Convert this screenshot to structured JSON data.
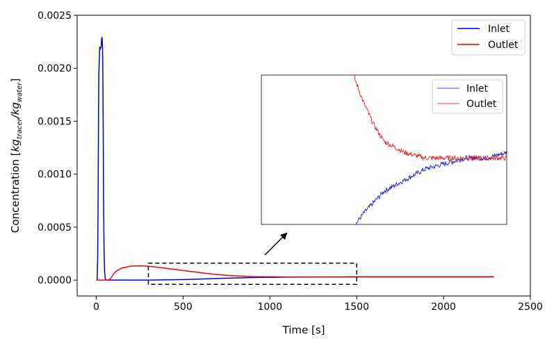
{
  "chart_data": {
    "type": "line",
    "xlabel": "Time [s]",
    "ylabel": {
      "text": "Concentration [",
      "num": "kg",
      "num_sub": "tracer",
      "sep": "/",
      "den": "kg",
      "den_sub": "water",
      "close": "]"
    },
    "xlim": [
      -110,
      2500
    ],
    "ylim": [
      -0.00015,
      0.0025
    ],
    "xticks": [
      "0",
      "500",
      "1000",
      "1500",
      "2000",
      "2500"
    ],
    "xtick_values": [
      0,
      500,
      1000,
      1500,
      2000,
      2500
    ],
    "yticks": [
      "0.0000",
      "0.0005",
      "0.0010",
      "0.0015",
      "0.0020",
      "0.0025"
    ],
    "ytick_values": [
      0,
      0.0005,
      0.001,
      0.0015,
      0.002,
      0.0025
    ],
    "grid": false,
    "legend_position": "upper right",
    "series": [
      {
        "name": "Inlet",
        "color": "#0000cc",
        "x": [
          0,
          5,
          8,
          10,
          13,
          15,
          18,
          20,
          22,
          25,
          28,
          30,
          32,
          34,
          36,
          38,
          40,
          42,
          45,
          48,
          52,
          60,
          80,
          150,
          300,
          400,
          500,
          600,
          700,
          800,
          900,
          1000,
          1100,
          1200,
          1300,
          1400,
          1500,
          1600,
          1700,
          1800,
          1900,
          2000,
          2100,
          2200,
          2290
        ],
        "y": [
          0,
          0,
          0.0002,
          0.0006,
          0.0015,
          0.00195,
          0.0021,
          0.0022,
          0.00218,
          0.00219,
          0.0022,
          0.00226,
          0.00229,
          0.00228,
          0.0022,
          0.0019,
          0.0014,
          0.0008,
          0.0003,
          8e-05,
          1e-05,
          0,
          0,
          0,
          0,
          2e-06,
          5e-06,
          1e-05,
          1.5e-05,
          2e-05,
          2.4e-05,
          2.6e-05,
          2.8e-05,
          2.9e-05,
          3e-05,
          3e-05,
          3.1e-05,
          3.1e-05,
          3.1e-05,
          3.1e-05,
          3.1e-05,
          3.1e-05,
          3.1e-05,
          3.1e-05,
          3.1e-05
        ]
      },
      {
        "name": "Outlet",
        "color": "#ee0000",
        "x": [
          0,
          60,
          75,
          85,
          100,
          120,
          150,
          200,
          250,
          300,
          350,
          400,
          450,
          500,
          550,
          600,
          650,
          700,
          750,
          800,
          850,
          900,
          950,
          1000,
          1100,
          1200,
          1300,
          1400,
          1500,
          1700,
          1900,
          2100,
          2290
        ],
        "y": [
          0,
          0,
          3e-06,
          2e-05,
          6e-05,
          9e-05,
          0.000115,
          0.000132,
          0.000135,
          0.00013,
          0.000122,
          0.000112,
          0.000102,
          9e-05,
          8e-05,
          7e-05,
          6e-05,
          5.2e-05,
          4.5e-05,
          4e-05,
          3.6e-05,
          3.3e-05,
          3.2e-05,
          3.1e-05,
          3e-05,
          3e-05,
          3e-05,
          3e-05,
          3e-05,
          3e-05,
          3e-05,
          3e-05,
          3e-05
        ]
      }
    ],
    "zoom_region": {
      "x": [
        300,
        1500
      ],
      "y": [
        -4e-05,
        0.00016
      ]
    },
    "inset": {
      "xlim": [
        300,
        1500
      ],
      "ylim": [
        1.8e-05,
        4.5e-05
      ],
      "legend_position": "upper right"
    }
  }
}
